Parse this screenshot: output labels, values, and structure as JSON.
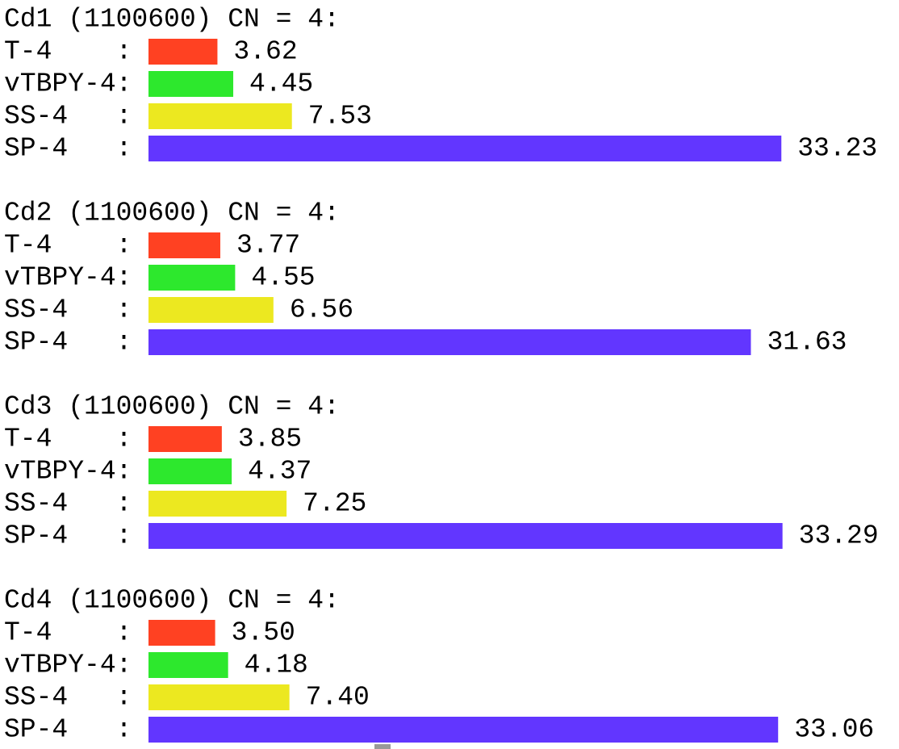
{
  "groups": [
    {
      "title": "Cd1 (1100600) CN = 4:",
      "rows": [
        {
          "label": "T-4    :",
          "value": 3.62,
          "color": "#ff4122"
        },
        {
          "label": "vTBPY-4:",
          "value": 4.45,
          "color": "#2de82d"
        },
        {
          "label": "SS-4   :",
          "value": 7.53,
          "color": "#ece820"
        },
        {
          "label": "SP-4   :",
          "value": 33.23,
          "color": "#6236ff"
        }
      ]
    },
    {
      "title": "Cd2 (1100600) CN = 4:",
      "rows": [
        {
          "label": "T-4    :",
          "value": 3.77,
          "color": "#ff4122"
        },
        {
          "label": "vTBPY-4:",
          "value": 4.55,
          "color": "#2de82d"
        },
        {
          "label": "SS-4   :",
          "value": 6.56,
          "color": "#ece820"
        },
        {
          "label": "SP-4   :",
          "value": 31.63,
          "color": "#6236ff"
        }
      ]
    },
    {
      "title": "Cd3 (1100600) CN = 4:",
      "rows": [
        {
          "label": "T-4    :",
          "value": 3.85,
          "color": "#ff4122"
        },
        {
          "label": "vTBPY-4:",
          "value": 4.37,
          "color": "#2de82d"
        },
        {
          "label": "SS-4   :",
          "value": 7.25,
          "color": "#ece820"
        },
        {
          "label": "SP-4   :",
          "value": 33.29,
          "color": "#6236ff"
        }
      ]
    },
    {
      "title": "Cd4 (1100600) CN = 4:",
      "rows": [
        {
          "label": "T-4    :",
          "value": 3.5,
          "value_label": "3.50",
          "color": "#ff4122"
        },
        {
          "label": "vTBPY-4:",
          "value": 4.18,
          "color": "#2de82d"
        },
        {
          "label": "SS-4   :",
          "value": 7.4,
          "value_label": "7.40",
          "color": "#ece820"
        },
        {
          "label": "SP-4   :",
          "value": 33.06,
          "color": "#6236ff"
        }
      ]
    }
  ]
}
